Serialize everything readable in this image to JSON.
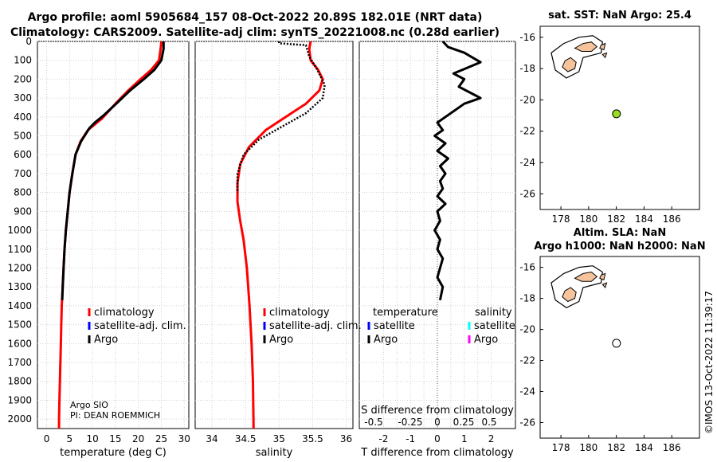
{
  "title": {
    "line1": "Argo profile: aoml 5905684_157 08-Oct-2022 20.89S 182.01E (NRT data)",
    "line2": "Climatology: CARS2009. Satellite-adj clim: synTS_20221008.nc (0.28d earlier)"
  },
  "colors": {
    "climatology": "#ff0000",
    "satellite": "#0000ff",
    "argo": "#000000",
    "temp_sat": "#0000ff",
    "sal_sat": "#00ffff",
    "sal_argo": "#ff00ff",
    "land": "#f5c49c",
    "float_sst": "#99dd22"
  },
  "chart_data": [
    {
      "type": "line",
      "panel": "temperature",
      "xlabel": "temperature (deg C)",
      "xlim": [
        -2,
        31
      ],
      "xticks": [
        "0",
        "5",
        "10",
        "15",
        "20",
        "25",
        "30"
      ],
      "ylim": [
        2050,
        0
      ],
      "yticks": [
        "0",
        "100",
        "200",
        "300",
        "400",
        "500",
        "600",
        "700",
        "800",
        "900",
        "1000",
        "1100",
        "1200",
        "1300",
        "1400",
        "1500",
        "1600",
        "1700",
        "1800",
        "1900",
        "2000"
      ],
      "legend": [
        "climatology",
        "satellite-adj. clim.",
        "Argo"
      ],
      "annotation": [
        "Argo SIO",
        "PI: DEAN ROEMMICH"
      ],
      "series": [
        {
          "name": "climatology",
          "color": "#ff0000",
          "points": [
            [
              25.0,
              0
            ],
            [
              24.9,
              30
            ],
            [
              24.5,
              100
            ],
            [
              22.8,
              150
            ],
            [
              20.5,
              200
            ],
            [
              17.8,
              260
            ],
            [
              15.0,
              330
            ],
            [
              12.0,
              410
            ],
            [
              9.0,
              470
            ],
            [
              7.4,
              530
            ],
            [
              6.3,
              600
            ],
            [
              5.6,
              700
            ],
            [
              5.0,
              800
            ],
            [
              4.6,
              900
            ],
            [
              4.2,
              1000
            ],
            [
              3.9,
              1100
            ],
            [
              3.7,
              1200
            ],
            [
              3.5,
              1300
            ],
            [
              3.3,
              1400
            ],
            [
              3.2,
              1500
            ],
            [
              3.1,
              1600
            ],
            [
              3.0,
              1700
            ],
            [
              2.9,
              1800
            ],
            [
              2.8,
              1900
            ],
            [
              2.7,
              2000
            ],
            [
              2.7,
              2050
            ]
          ]
        },
        {
          "name": "Argo",
          "color": "#000000",
          "points": [
            [
              25.5,
              0
            ],
            [
              25.5,
              40
            ],
            [
              25.0,
              100
            ],
            [
              23.5,
              150
            ],
            [
              21.2,
              200
            ],
            [
              18.2,
              260
            ],
            [
              15.6,
              320
            ],
            [
              12.5,
              390
            ],
            [
              10.5,
              430
            ],
            [
              9.3,
              460
            ],
            [
              7.5,
              530
            ],
            [
              6.3,
              600
            ],
            [
              5.6,
              700
            ],
            [
              5.0,
              800
            ],
            [
              4.6,
              900
            ],
            [
              4.2,
              1000
            ],
            [
              3.9,
              1100
            ],
            [
              3.7,
              1200
            ],
            [
              3.5,
              1300
            ],
            [
              3.4,
              1370
            ]
          ]
        }
      ]
    },
    {
      "type": "line",
      "panel": "salinity",
      "xlabel": "salinity",
      "xlim": [
        33.75,
        36.1
      ],
      "xticks": [
        "34",
        "34.5",
        "35",
        "35.5",
        "36"
      ],
      "ylim": [
        2050,
        0
      ],
      "legend": [
        "climatology",
        "satellite-adj. clim.",
        "Argo"
      ],
      "series": [
        {
          "name": "climatology",
          "color": "#ff0000",
          "points": [
            [
              35.47,
              0
            ],
            [
              35.45,
              40
            ],
            [
              35.47,
              100
            ],
            [
              35.58,
              150
            ],
            [
              35.65,
              200
            ],
            [
              35.6,
              260
            ],
            [
              35.4,
              330
            ],
            [
              35.1,
              400
            ],
            [
              34.8,
              470
            ],
            [
              34.55,
              560
            ],
            [
              34.42,
              650
            ],
            [
              34.38,
              750
            ],
            [
              34.38,
              850
            ],
            [
              34.42,
              950
            ],
            [
              34.47,
              1050
            ],
            [
              34.52,
              1200
            ],
            [
              34.56,
              1400
            ],
            [
              34.59,
              1600
            ],
            [
              34.61,
              1800
            ],
            [
              34.62,
              2050
            ]
          ]
        },
        {
          "name": "Argo",
          "color": "#000000",
          "style": "dotted",
          "points": [
            [
              35.0,
              0
            ],
            [
              35.0,
              10
            ],
            [
              35.4,
              20
            ],
            [
              35.45,
              80
            ],
            [
              35.57,
              150
            ],
            [
              35.68,
              230
            ],
            [
              35.65,
              300
            ],
            [
              35.4,
              380
            ],
            [
              35.05,
              450
            ],
            [
              34.7,
              520
            ],
            [
              34.47,
              600
            ],
            [
              34.38,
              700
            ],
            [
              34.38,
              800
            ]
          ]
        }
      ]
    },
    {
      "type": "line",
      "panel": "difference",
      "xlabel": "T difference from climatology",
      "xlabel_top": "S difference from climatology",
      "xlim": [
        -2.9,
        2.9
      ],
      "xticks": [
        "-2",
        "-1.5",
        "-1",
        "-0.5",
        "0",
        "0.5",
        "1",
        "1.5",
        "2"
      ],
      "xticks_s": [
        "-0.5",
        "-0.25",
        "0",
        "0.25",
        "0.5"
      ],
      "ylim": [
        2050,
        0
      ],
      "legend_left_title": "temperature",
      "legend_left": [
        "satellite",
        "Argo"
      ],
      "legend_right_title": "salinity",
      "legend_right": [
        "satellite",
        "Argo"
      ],
      "series": [
        {
          "name": "Argo",
          "color": "#000000",
          "points": [
            [
              0.2,
              0
            ],
            [
              0.4,
              30
            ],
            [
              1.0,
              60
            ],
            [
              1.6,
              110
            ],
            [
              1.1,
              140
            ],
            [
              0.6,
              170
            ],
            [
              1.0,
              200
            ],
            [
              0.8,
              240
            ],
            [
              1.2,
              270
            ],
            [
              1.6,
              300
            ],
            [
              1.0,
              330
            ],
            [
              0.7,
              360
            ],
            [
              0.3,
              400
            ],
            [
              0.0,
              430
            ],
            [
              0.2,
              470
            ],
            [
              -0.1,
              500
            ],
            [
              0.3,
              540
            ],
            [
              0.0,
              580
            ],
            [
              0.4,
              620
            ],
            [
              0.1,
              660
            ],
            [
              0.3,
              700
            ],
            [
              0.1,
              740
            ],
            [
              0.2,
              780
            ],
            [
              0.0,
              820
            ],
            [
              0.3,
              860
            ],
            [
              0.0,
              900
            ],
            [
              0.1,
              950
            ],
            [
              -0.1,
              1000
            ],
            [
              0.1,
              1050
            ],
            [
              0.0,
              1100
            ],
            [
              0.2,
              1150
            ],
            [
              0.1,
              1200
            ],
            [
              0.0,
              1250
            ],
            [
              0.2,
              1300
            ],
            [
              0.1,
              1370
            ]
          ]
        }
      ]
    },
    {
      "type": "scatter",
      "panel": "sst_map",
      "title": "sat. SST: NaN Argo: 25.4",
      "xlim": [
        176.5,
        188
      ],
      "ylim": [
        -27,
        -15.3
      ],
      "xticks": [
        "178",
        "180",
        "182",
        "184",
        "186"
      ],
      "yticks": [
        "-16",
        "-18",
        "-20",
        "-22",
        "-24",
        "-26"
      ],
      "points": [
        {
          "x": 182.01,
          "y": -20.89
        }
      ]
    },
    {
      "type": "scatter",
      "panel": "sla_map",
      "title_line1": "Altim. SLA: NaN",
      "title_line2": "Argo h1000: NaN h2000: NaN",
      "xlim": [
        176.5,
        188
      ],
      "ylim": [
        -27,
        -15.3
      ],
      "xticks": [
        "178",
        "180",
        "182",
        "184",
        "186"
      ],
      "yticks": [
        "-16",
        "-18",
        "-20",
        "-22",
        "-24",
        "-26"
      ],
      "points": [
        {
          "x": 182.01,
          "y": -20.89
        }
      ]
    }
  ],
  "footer": "©IMOS 13-Oct-2022 11:39:17"
}
